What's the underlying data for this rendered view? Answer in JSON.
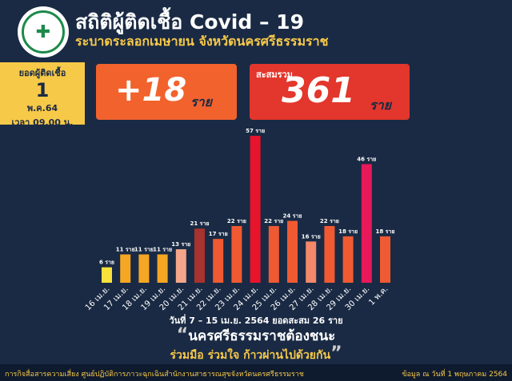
{
  "header": {
    "title": "สถิติผู้ติดเชื้อ Covid – 19",
    "subtitle": "ระบาดระลอกเมษายน จังหวัดนครศรีธรรมราช"
  },
  "day_box": {
    "label": "ยอดผู้ติดเชื้อ",
    "day": "1",
    "month": "พ.ค.64",
    "time": "เวลา 09.00 น."
  },
  "new_cases": {
    "value": "+18",
    "unit": "ราย"
  },
  "total_cases": {
    "label": "สะสมรวม",
    "value": "361",
    "unit": "ราย"
  },
  "note": "วันที่ 7 – 15 เม.ย. 2564 ยอดสะสม 26 ราย",
  "slogan_main": "นครศรีธรรมราชต้องชนะ",
  "slogan_sub": "ร่วมมือ ร่วมใจ ก้าวผ่านไปด้วยกัน",
  "footer": {
    "left": "การกิจสื่อสารความเสี่ยง ศูนย์ปฏิบัติการภาวะฉุกเฉินสำนักงานสาธารณสุขจังหวัดนครศรีธรรมราช",
    "right": "ข้อมูล ณ วันที่ 1 พฤษภาคม 2564"
  },
  "chart_data": {
    "type": "bar",
    "categories": [
      "16 เม.ย.",
      "17 เม.ย.",
      "18 เม.ย.",
      "19 เม.ย.",
      "20 เม.ย.",
      "21 เม.ย.",
      "22 เม.ย.",
      "23 เม.ย.",
      "24 เม.ย.",
      "25 เม.ย.",
      "26 เม.ย.",
      "27 เม.ย.",
      "28 เม.ย.",
      "29 เม.ย.",
      "30 เม.ย.",
      "1 พ.ค."
    ],
    "values": [
      6,
      11,
      11,
      11,
      13,
      21,
      17,
      22,
      57,
      22,
      24,
      16,
      22,
      18,
      46,
      18
    ],
    "value_labels": [
      "6 ราย",
      "11 ราย",
      "11 ราย",
      "11 ราย",
      "13 ราย",
      "21 ราย",
      "17 ราย",
      "22 ราย",
      "57 ราย",
      "22 ราย",
      "24 ราย",
      "16 ราย",
      "22 ราย",
      "18 ราย",
      "46 ราย",
      "18 ราย"
    ],
    "colors": [
      "#f7e13a",
      "#f5a623",
      "#f5a623",
      "#f5a623",
      "#f4a58a",
      "#a8322e",
      "#f05a32",
      "#f05a32",
      "#e8142b",
      "#f05a32",
      "#f05a32",
      "#f4886a",
      "#f05a32",
      "#f05a32",
      "#e8195a",
      "#f05a32"
    ],
    "title": "",
    "xlabel": "",
    "ylabel": "",
    "ylim": [
      0,
      57
    ]
  }
}
